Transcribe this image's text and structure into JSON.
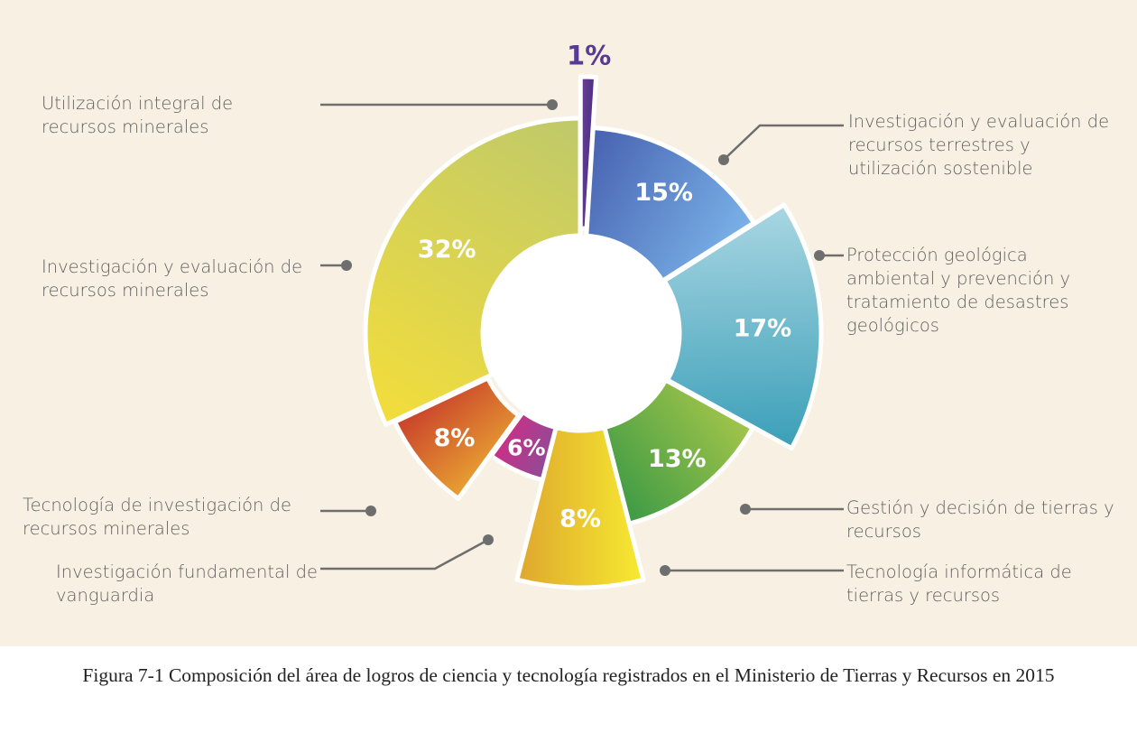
{
  "chart_data": {
    "type": "pie",
    "variant": "donut",
    "title": "Figura 7-1 Composición del área de logros de ciencia y tecnología registrados en el Ministerio de Tierras y Recursos en 2015",
    "unit": "%",
    "slices": [
      {
        "label": "Utilización integral de recursos minerales",
        "value": 1,
        "display": "1%",
        "colors": [
          "#6b3f96",
          "#4a2f86"
        ]
      },
      {
        "label": "Investigación y evaluación de recursos terrestres y utilización sostenible",
        "value": 15,
        "display": "15%",
        "colors": [
          "#4761b0",
          "#7ab2e8"
        ]
      },
      {
        "label": "Protección geológica ambiental y prevención y tratamiento de desastres geológicos",
        "value": 17,
        "display": "17%",
        "colors": [
          "#a9d6e2",
          "#3a9fb8"
        ]
      },
      {
        "label": "Gestión y decisión de tierras y recursos",
        "value": 13,
        "display": "13%",
        "colors": [
          "#a3c54a",
          "#3d9a45"
        ]
      },
      {
        "label": "Tecnología informática de tierras y recursos",
        "value": 8,
        "display": "8%",
        "colors": [
          "#f7ea32",
          "#dea72d"
        ]
      },
      {
        "label": "Investigación fundamental de vanguardia",
        "value": 6,
        "display": "6%",
        "colors": [
          "#8d4c97",
          "#cc2f86"
        ]
      },
      {
        "label": "Tecnología de investigación de recursos minerales",
        "value": 8,
        "display": "8%",
        "colors": [
          "#e8a232",
          "#c9402b"
        ]
      },
      {
        "label": "Investigación y evaluación de recursos minerales",
        "value": 32,
        "display": "32%",
        "colors": [
          "#f3dd3b",
          "#bfc96a"
        ]
      }
    ]
  }
}
